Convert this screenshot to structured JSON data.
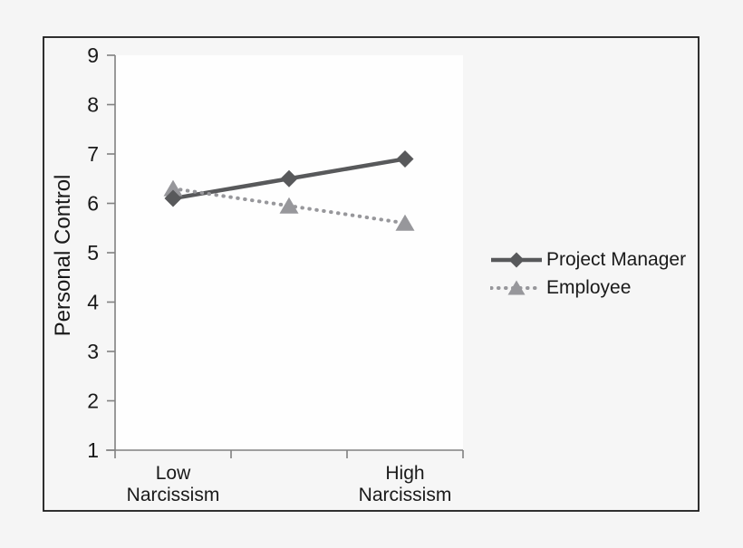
{
  "figure": {
    "outer_background": "#f5f5f5",
    "inner_background": "#f6f6f6",
    "plot_background": "#fefefe",
    "border_color": "#1a1a1a",
    "axis_color": "#818181",
    "text_color": "#1a1a1a"
  },
  "chart_data": {
    "type": "line",
    "title": "",
    "xlabel": "",
    "ylabel": "Personal Control",
    "ylim": [
      1,
      9
    ],
    "y_ticks": [
      1,
      2,
      3,
      4,
      5,
      6,
      7,
      8,
      9
    ],
    "categories": [
      "Low Narcissism",
      "",
      "High Narcissism"
    ],
    "grid": false,
    "legend_position": "right-outside",
    "series": [
      {
        "name": "Project Manager",
        "values": [
          6.1,
          6.5,
          6.9
        ],
        "color": "#58595b",
        "line_style": "solid",
        "marker": "diamond"
      },
      {
        "name": "Employee",
        "values": [
          6.3,
          5.95,
          5.6
        ],
        "color": "#97979b",
        "line_style": "dotted",
        "marker": "triangle"
      }
    ]
  }
}
